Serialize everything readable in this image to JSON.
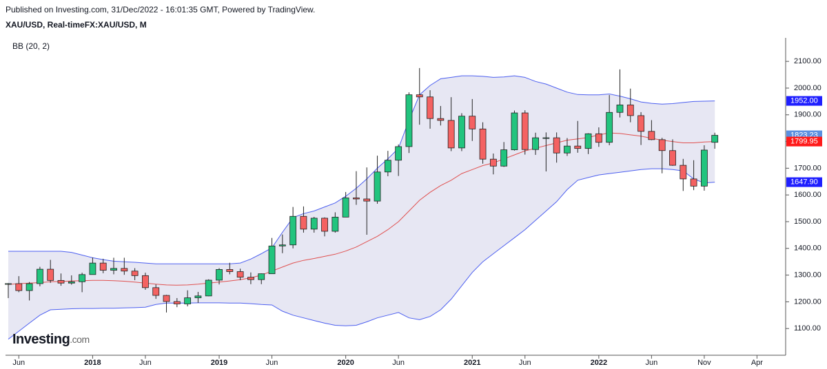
{
  "chart_data": {
    "type": "candlestick",
    "publisher_note": "Published on Investing.com, 31/Dec/2022 - 16:01:35 GMT, Powered by TradingView.",
    "title": "XAU/USD, Real-timeFX:XAU/USD, M",
    "indicator": "BB (20, 2)",
    "logo": "Investing",
    "logo_suffix": ".com",
    "x": [
      "2017-05",
      "2017-06",
      "2017-07",
      "2017-08",
      "2017-09",
      "2017-10",
      "2017-11",
      "2017-12",
      "2018-01",
      "2018-02",
      "2018-03",
      "2018-04",
      "2018-05",
      "2018-06",
      "2018-07",
      "2018-08",
      "2018-09",
      "2018-10",
      "2018-11",
      "2018-12",
      "2019-01",
      "2019-02",
      "2019-03",
      "2019-04",
      "2019-05",
      "2019-06",
      "2019-07",
      "2019-08",
      "2019-09",
      "2019-10",
      "2019-11",
      "2019-12",
      "2020-01",
      "2020-02",
      "2020-03",
      "2020-04",
      "2020-05",
      "2020-06",
      "2020-07",
      "2020-08",
      "2020-09",
      "2020-10",
      "2020-11",
      "2020-12",
      "2021-01",
      "2021-02",
      "2021-03",
      "2021-04",
      "2021-05",
      "2021-06",
      "2021-07",
      "2021-08",
      "2021-09",
      "2021-10",
      "2021-11",
      "2021-12",
      "2022-01",
      "2022-02",
      "2022-03",
      "2022-04",
      "2022-05",
      "2022-06",
      "2022-07",
      "2022-08",
      "2022-09",
      "2022-10",
      "2022-11",
      "2022-12"
    ],
    "open": [
      1268,
      1268,
      1242,
      1268,
      1322,
      1280,
      1270,
      1275,
      1302,
      1345,
      1318,
      1325,
      1315,
      1298,
      1253,
      1224,
      1201,
      1192,
      1215,
      1222,
      1281,
      1321,
      1313,
      1292,
      1283,
      1305,
      1409,
      1413,
      1520,
      1472,
      1513,
      1464,
      1517,
      1589,
      1585,
      1577,
      1686,
      1730,
      1781,
      1975,
      1967,
      1886,
      1879,
      1776,
      1895,
      1847,
      1734,
      1708,
      1769,
      1907,
      1770,
      1814,
      1814,
      1757,
      1783,
      1774,
      1829,
      1797,
      1909,
      1937,
      1897,
      1838,
      1807,
      1766,
      1711,
      1660,
      1633,
      1797
    ],
    "high": [
      1270,
      1296,
      1274,
      1331,
      1357,
      1306,
      1299,
      1309,
      1366,
      1361,
      1365,
      1365,
      1326,
      1309,
      1265,
      1226,
      1214,
      1243,
      1237,
      1284,
      1326,
      1346,
      1324,
      1310,
      1306,
      1439,
      1452,
      1555,
      1557,
      1518,
      1516,
      1535,
      1611,
      1689,
      1703,
      1747,
      1765,
      1789,
      1984,
      2075,
      1992,
      1933,
      1966,
      1906,
      1959,
      1872,
      1755,
      1798,
      1916,
      1917,
      1833,
      1834,
      1834,
      1813,
      1877,
      1831,
      1853,
      1974,
      2070,
      1998,
      1910,
      1880,
      1814,
      1808,
      1735,
      1730,
      1786,
      1833
    ],
    "low": [
      1214,
      1236,
      1205,
      1258,
      1271,
      1260,
      1264,
      1236,
      1302,
      1307,
      1303,
      1301,
      1281,
      1245,
      1211,
      1160,
      1180,
      1183,
      1196,
      1221,
      1265,
      1303,
      1281,
      1266,
      1266,
      1305,
      1382,
      1400,
      1459,
      1459,
      1445,
      1459,
      1517,
      1563,
      1451,
      1567,
      1670,
      1671,
      1757,
      1863,
      1848,
      1860,
      1764,
      1764,
      1802,
      1717,
      1677,
      1705,
      1766,
      1751,
      1750,
      1688,
      1721,
      1746,
      1758,
      1753,
      1780,
      1786,
      1890,
      1872,
      1787,
      1805,
      1681,
      1709,
      1615,
      1618,
      1616,
      1773
    ],
    "close": [
      1268,
      1242,
      1268,
      1322,
      1280,
      1270,
      1275,
      1302,
      1345,
      1318,
      1325,
      1315,
      1298,
      1253,
      1224,
      1201,
      1192,
      1215,
      1222,
      1281,
      1321,
      1313,
      1292,
      1283,
      1305,
      1409,
      1413,
      1520,
      1472,
      1513,
      1464,
      1517,
      1589,
      1585,
      1577,
      1686,
      1730,
      1781,
      1975,
      1967,
      1886,
      1879,
      1776,
      1895,
      1847,
      1734,
      1708,
      1769,
      1907,
      1770,
      1814,
      1814,
      1757,
      1783,
      1774,
      1829,
      1797,
      1909,
      1937,
      1897,
      1838,
      1807,
      1766,
      1711,
      1660,
      1633,
      1768,
      1823.23
    ],
    "up_color": "#22c47e",
    "down_color": "#f46262",
    "bollinger": {
      "upper": [
        1389,
        1389,
        1389,
        1389,
        1389,
        1389,
        1385,
        1375,
        1365,
        1358,
        1352,
        1350,
        1348,
        1345,
        1342,
        1342,
        1342,
        1342,
        1342,
        1342,
        1342,
        1342,
        1345,
        1360,
        1380,
        1402,
        1460,
        1515,
        1530,
        1540,
        1555,
        1570,
        1595,
        1625,
        1660,
        1700,
        1735,
        1775,
        1880,
        1975,
        2010,
        2035,
        2040,
        2046,
        2046,
        2044,
        2040,
        2042,
        2046,
        2040,
        2025,
        2015,
        2000,
        1985,
        1976,
        1975,
        1975,
        1978,
        1970,
        1960,
        1948,
        1943,
        1940,
        1942,
        1946,
        1950,
        1951,
        1952
      ],
      "middle": [
        1265,
        1268,
        1270,
        1272,
        1275,
        1276,
        1278,
        1279,
        1280,
        1280,
        1279,
        1277,
        1274,
        1270,
        1266,
        1263,
        1262,
        1263,
        1266,
        1270,
        1274,
        1278,
        1283,
        1290,
        1300,
        1315,
        1330,
        1345,
        1355,
        1362,
        1370,
        1378,
        1390,
        1405,
        1425,
        1445,
        1470,
        1500,
        1540,
        1580,
        1610,
        1635,
        1655,
        1680,
        1695,
        1710,
        1720,
        1735,
        1750,
        1765,
        1775,
        1785,
        1795,
        1805,
        1810,
        1815,
        1825,
        1832,
        1830,
        1825,
        1820,
        1812,
        1805,
        1800,
        1795,
        1795,
        1798,
        1799.95
      ],
      "lower": [
        1060,
        1090,
        1120,
        1150,
        1170,
        1172,
        1174,
        1175,
        1175,
        1176,
        1176,
        1177,
        1178,
        1180,
        1190,
        1195,
        1195,
        1195,
        1196,
        1196,
        1196,
        1195,
        1195,
        1193,
        1190,
        1188,
        1165,
        1150,
        1140,
        1130,
        1120,
        1112,
        1110,
        1112,
        1125,
        1140,
        1150,
        1160,
        1140,
        1133,
        1145,
        1170,
        1210,
        1260,
        1310,
        1350,
        1380,
        1410,
        1440,
        1470,
        1505,
        1540,
        1575,
        1620,
        1655,
        1665,
        1675,
        1680,
        1685,
        1690,
        1695,
        1698,
        1698,
        1695,
        1690,
        1660,
        1645,
        1647.9
      ],
      "band_color": "#4b5ef0",
      "middle_color": "#e0504f",
      "fill": "#e7e7f3"
    },
    "price_labels": [
      {
        "value": 1952,
        "label": "1952.00",
        "color": "#1f1fff"
      },
      {
        "value": 1823.23,
        "label": "1823.23",
        "color": "#5b8fe0"
      },
      {
        "value": 1799.95,
        "label": "1799.95",
        "color": "#ff1a1a"
      },
      {
        "value": 1647.9,
        "label": "1647.90",
        "color": "#1f1fff"
      }
    ],
    "xlim": [
      "2017-05",
      "2023-06"
    ],
    "xticks": [
      {
        "value": "2017-06",
        "label": "Jun"
      },
      {
        "value": "2018-01",
        "label": "2018"
      },
      {
        "value": "2018-06",
        "label": "Jun"
      },
      {
        "value": "2019-01",
        "label": "2019"
      },
      {
        "value": "2019-06",
        "label": "Jun"
      },
      {
        "value": "2020-01",
        "label": "2020"
      },
      {
        "value": "2020-06",
        "label": "Jun"
      },
      {
        "value": "2021-01",
        "label": "2021"
      },
      {
        "value": "2021-06",
        "label": "Jun"
      },
      {
        "value": "2022-01",
        "label": "2022"
      },
      {
        "value": "2022-06",
        "label": "Jun"
      },
      {
        "value": "2022-11",
        "label": "Nov"
      },
      {
        "value": "2023-04",
        "label": "Apr"
      }
    ],
    "ylim": [
      1000,
      2188
    ],
    "yticks": [
      {
        "value": 1100,
        "label": "1100.00"
      },
      {
        "value": 1200,
        "label": "1200.00"
      },
      {
        "value": 1300,
        "label": "1300.00"
      },
      {
        "value": 1400,
        "label": "1400.00"
      },
      {
        "value": 1500,
        "label": "1500.00"
      },
      {
        "value": 1600,
        "label": "1600.00"
      },
      {
        "value": 1700,
        "label": "1700.00"
      },
      {
        "value": 1800,
        "label": "1800.00"
      },
      {
        "value": 1900,
        "label": "1900.00"
      },
      {
        "value": 2000,
        "label": "2000.00"
      },
      {
        "value": 2100,
        "label": "2100.00"
      }
    ]
  }
}
